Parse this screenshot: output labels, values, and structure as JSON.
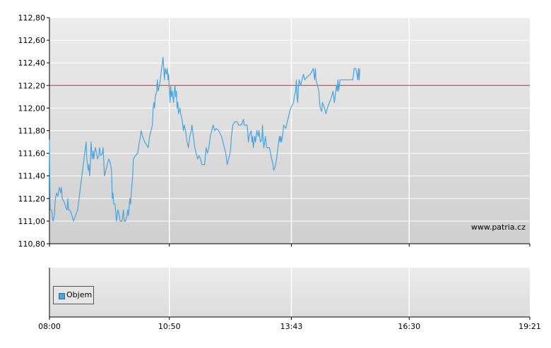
{
  "chart_data": [
    {
      "type": "line",
      "ylim": [
        110.8,
        112.8
      ],
      "y_ticks": [
        "112,80",
        "112,60",
        "112,40",
        "112,20",
        "112,00",
        "111,80",
        "111,60",
        "111,40",
        "111,20",
        "111,00",
        "110,80"
      ],
      "y_tick_values": [
        112.8,
        112.6,
        112.4,
        112.2,
        112.0,
        111.8,
        111.6,
        111.4,
        111.2,
        111.0,
        110.8
      ],
      "x_ticks": [
        "08:00",
        "10:50",
        "13:43",
        "16:30",
        "19:21"
      ],
      "x_tick_minutes": [
        480,
        650,
        823,
        990,
        1161
      ],
      "xlim_minutes": [
        480,
        1161
      ],
      "reference_line": {
        "value": 112.2,
        "color": "#d62020"
      },
      "watermark": "www.patria.cz",
      "grid": true,
      "series": [
        {
          "color": "#4aa3df",
          "points": [
            [
              480,
              111.72
            ],
            [
              481,
              111.1
            ],
            [
              483,
              111.1
            ],
            [
              485,
              111.0
            ],
            [
              487,
              111.05
            ],
            [
              488,
              111.18
            ],
            [
              490,
              111.25
            ],
            [
              492,
              111.22
            ],
            [
              494,
              111.3
            ],
            [
              496,
              111.25
            ],
            [
              497,
              111.3
            ],
            [
              498,
              111.2
            ],
            [
              500,
              111.18
            ],
            [
              502,
              111.15
            ],
            [
              503,
              111.12
            ],
            [
              505,
              111.1
            ],
            [
              506,
              111.2
            ],
            [
              507,
              111.1
            ],
            [
              509,
              111.1
            ],
            [
              512,
              111.05
            ],
            [
              514,
              111.0
            ],
            [
              517,
              111.05
            ],
            [
              520,
              111.1
            ],
            [
              524,
              111.3
            ],
            [
              528,
              111.5
            ],
            [
              531,
              111.65
            ],
            [
              532,
              111.7
            ],
            [
              533,
              111.55
            ],
            [
              535,
              111.45
            ],
            [
              536,
              111.5
            ],
            [
              537,
              111.4
            ],
            [
              538,
              111.5
            ],
            [
              539,
              111.7
            ],
            [
              540,
              111.6
            ],
            [
              541,
              111.55
            ],
            [
              542,
              111.62
            ],
            [
              543,
              111.55
            ],
            [
              545,
              111.65
            ],
            [
              547,
              111.6
            ],
            [
              548,
              111.55
            ],
            [
              550,
              111.58
            ],
            [
              551,
              111.65
            ],
            [
              552,
              111.6
            ],
            [
              553,
              111.58
            ],
            [
              555,
              111.6
            ],
            [
              556,
              111.65
            ],
            [
              558,
              111.4
            ],
            [
              560,
              111.45
            ],
            [
              562,
              111.5
            ],
            [
              564,
              111.55
            ],
            [
              566,
              111.52
            ],
            [
              568,
              111.45
            ],
            [
              569,
              111.2
            ],
            [
              570,
              111.25
            ],
            [
              571,
              111.15
            ],
            [
              573,
              111.15
            ],
            [
              575,
              111.0
            ],
            [
              576,
              111.05
            ],
            [
              577,
              111.1
            ],
            [
              579,
              111.05
            ],
            [
              580,
              111.0
            ],
            [
              583,
              111.0
            ],
            [
              585,
              111.1
            ],
            [
              586,
              111.0
            ],
            [
              588,
              111.0
            ],
            [
              590,
              111.05
            ],
            [
              591,
              111.1
            ],
            [
              592,
              111.05
            ],
            [
              594,
              111.2
            ],
            [
              595,
              111.15
            ],
            [
              596,
              111.25
            ],
            [
              598,
              111.4
            ],
            [
              599,
              111.55
            ],
            [
              602,
              111.58
            ],
            [
              605,
              111.6
            ],
            [
              607,
              111.68
            ],
            [
              609,
              111.75
            ],
            [
              610,
              111.8
            ],
            [
              612,
              111.75
            ],
            [
              615,
              111.7
            ],
            [
              620,
              111.65
            ],
            [
              622,
              111.75
            ],
            [
              624,
              111.8
            ],
            [
              626,
              111.85
            ],
            [
              627,
              112.0
            ],
            [
              628,
              112.05
            ],
            [
              629,
              112.0
            ],
            [
              630,
              112.1
            ],
            [
              632,
              112.15
            ],
            [
              633,
              112.25
            ],
            [
              634,
              112.15
            ],
            [
              636,
              112.2
            ],
            [
              637,
              112.25
            ],
            [
              638,
              112.3
            ],
            [
              639,
              112.35
            ],
            [
              640,
              112.4
            ],
            [
              641,
              112.45
            ],
            [
              642,
              112.35
            ],
            [
              643,
              112.25
            ],
            [
              644,
              112.35
            ],
            [
              646,
              112.3
            ],
            [
              647,
              112.35
            ],
            [
              648,
              112.25
            ],
            [
              649,
              112.3
            ],
            [
              650,
              112.15
            ],
            [
              651,
              112.05
            ],
            [
              652,
              112.2
            ],
            [
              653,
              112.1
            ],
            [
              654,
              112.15
            ],
            [
              656,
              112.05
            ],
            [
              657,
              112.15
            ],
            [
              658,
              112.2
            ],
            [
              659,
              112.1
            ],
            [
              660,
              112.15
            ],
            [
              661,
              112.0
            ],
            [
              662,
              112.05
            ],
            [
              663,
              111.95
            ],
            [
              665,
              112.0
            ],
            [
              666,
              111.95
            ],
            [
              668,
              111.9
            ],
            [
              670,
              111.8
            ],
            [
              671,
              111.85
            ],
            [
              673,
              111.8
            ],
            [
              675,
              111.7
            ],
            [
              677,
              111.65
            ],
            [
              679,
              111.75
            ],
            [
              681,
              111.8
            ],
            [
              682,
              111.85
            ],
            [
              684,
              111.75
            ],
            [
              686,
              111.65
            ],
            [
              688,
              111.6
            ],
            [
              690,
              111.55
            ],
            [
              692,
              111.58
            ],
            [
              694,
              111.55
            ],
            [
              696,
              111.5
            ],
            [
              700,
              111.5
            ],
            [
              702,
              111.65
            ],
            [
              704,
              111.6
            ],
            [
              706,
              111.65
            ],
            [
              708,
              111.75
            ],
            [
              710,
              111.8
            ],
            [
              712,
              111.85
            ],
            [
              714,
              111.8
            ],
            [
              716,
              111.82
            ],
            [
              720,
              111.8
            ],
            [
              724,
              111.75
            ],
            [
              728,
              111.65
            ],
            [
              730,
              111.6
            ],
            [
              732,
              111.5
            ],
            [
              734,
              111.55
            ],
            [
              736,
              111.6
            ],
            [
              737,
              111.65
            ],
            [
              738,
              111.75
            ],
            [
              740,
              111.85
            ],
            [
              743,
              111.88
            ],
            [
              746,
              111.88
            ],
            [
              748,
              111.85
            ],
            [
              752,
              111.85
            ],
            [
              755,
              111.9
            ],
            [
              756,
              111.85
            ],
            [
              760,
              111.85
            ],
            [
              761,
              111.8
            ],
            [
              762,
              111.7
            ],
            [
              763,
              111.75
            ],
            [
              766,
              111.8
            ],
            [
              767,
              111.7
            ],
            [
              768,
              111.75
            ],
            [
              769,
              111.65
            ],
            [
              771,
              111.75
            ],
            [
              772,
              111.7
            ],
            [
              774,
              111.8
            ],
            [
              776,
              111.75
            ],
            [
              777,
              111.8
            ],
            [
              779,
              111.7
            ],
            [
              781,
              111.72
            ],
            [
              782,
              111.85
            ],
            [
              783,
              111.7
            ],
            [
              784,
              111.65
            ],
            [
              786,
              111.75
            ],
            [
              788,
              111.65
            ],
            [
              792,
              111.65
            ],
            [
              795,
              111.55
            ],
            [
              797,
              111.5
            ],
            [
              798,
              111.45
            ],
            [
              800,
              111.48
            ],
            [
              802,
              111.55
            ],
            [
              804,
              111.65
            ],
            [
              806,
              111.75
            ],
            [
              807,
              111.7
            ],
            [
              808,
              111.75
            ],
            [
              809,
              111.7
            ],
            [
              811,
              111.78
            ],
            [
              812,
              111.85
            ],
            [
              815,
              111.82
            ],
            [
              818,
              111.9
            ],
            [
              822,
              112.0
            ],
            [
              826,
              112.05
            ],
            [
              827,
              112.1
            ],
            [
              829,
              112.15
            ],
            [
              830,
              112.25
            ],
            [
              831,
              112.1
            ],
            [
              832,
              112.05
            ],
            [
              833,
              112.2
            ],
            [
              834,
              112.25
            ],
            [
              836,
              112.2
            ],
            [
              838,
              112.25
            ],
            [
              840,
              112.3
            ],
            [
              842,
              112.25
            ],
            [
              846,
              112.28
            ],
            [
              850,
              112.3
            ],
            [
              854,
              112.35
            ],
            [
              856,
              112.25
            ],
            [
              857,
              112.35
            ],
            [
              858,
              112.25
            ],
            [
              860,
              112.2
            ],
            [
              862,
              112.15
            ],
            [
              863,
              112.05
            ],
            [
              864,
              112.0
            ],
            [
              866,
              111.97
            ],
            [
              867,
              112.05
            ],
            [
              870,
              112.0
            ],
            [
              872,
              111.95
            ],
            [
              874,
              112.0
            ],
            [
              877,
              112.05
            ],
            [
              880,
              112.1
            ],
            [
              882,
              112.15
            ],
            [
              884,
              112.05
            ],
            [
              886,
              112.15
            ],
            [
              887,
              112.2
            ],
            [
              888,
              112.15
            ],
            [
              889,
              112.25
            ],
            [
              890,
              112.15
            ],
            [
              891,
              112.2
            ],
            [
              892,
              112.25
            ],
            [
              894,
              112.25
            ],
            [
              898,
              112.25
            ],
            [
              905,
              112.25
            ],
            [
              910,
              112.25
            ],
            [
              912,
              112.35
            ],
            [
              914,
              112.35
            ],
            [
              916,
              112.3
            ],
            [
              917,
              112.25
            ],
            [
              918,
              112.35
            ],
            [
              919,
              112.25
            ],
            [
              920,
              112.35
            ]
          ]
        }
      ]
    },
    {
      "type": "bar",
      "series": [
        {
          "name": "Objem",
          "values": []
        }
      ],
      "x_ticks": [
        "08:00",
        "10:50",
        "13:43",
        "16:30",
        "19:21"
      ]
    }
  ]
}
